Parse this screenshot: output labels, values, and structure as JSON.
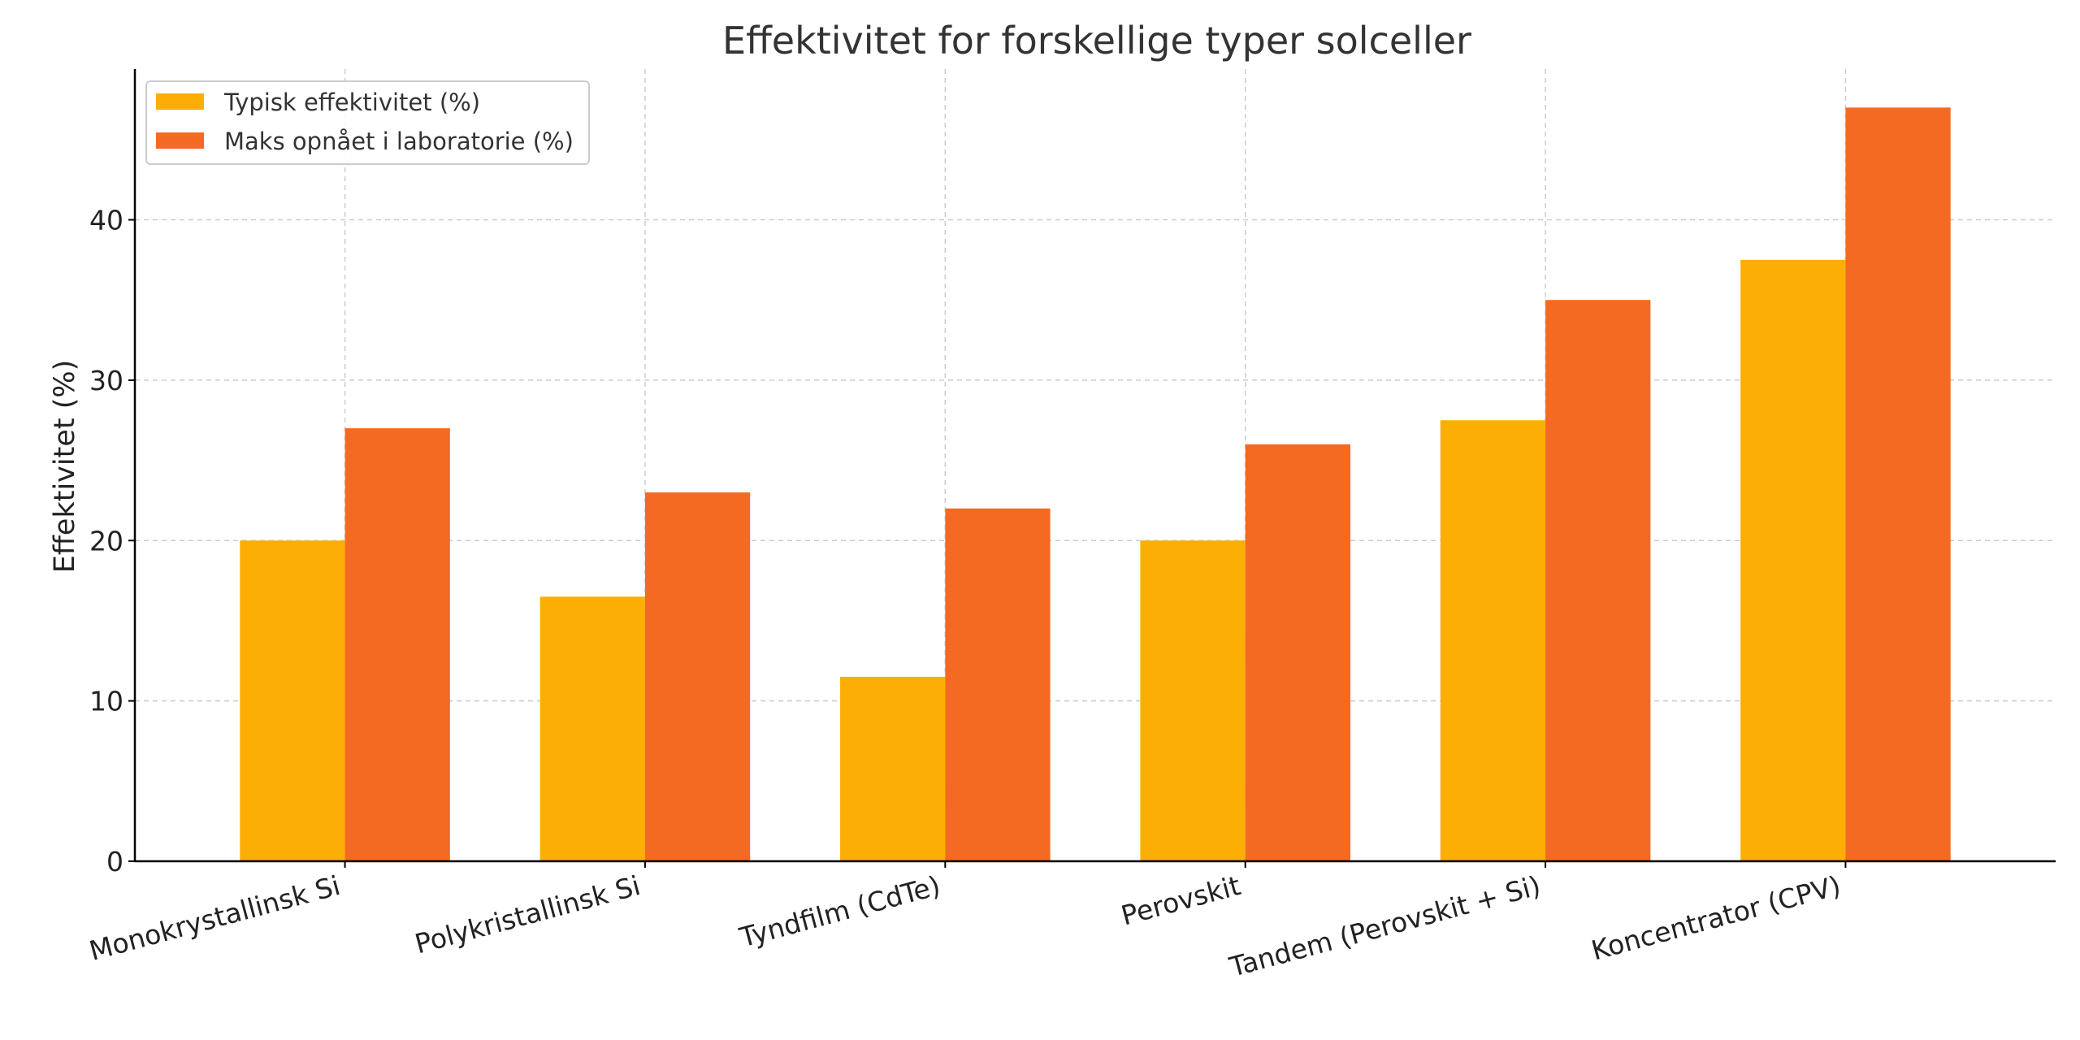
{
  "chart_data": {
    "type": "bar",
    "title": "Effektivitet for forskellige typer solceller",
    "xlabel": "",
    "ylabel": "Effektivitet (%)",
    "categories": [
      "Monokrystallinsk Si",
      "Polykristallinsk Si",
      "Tyndfilm (CdTe)",
      "Perovskit",
      "Tandem (Perovskit + Si)",
      "Koncentrator (CPV)"
    ],
    "series": [
      {
        "name": "Typisk effektivitet (%)",
        "color": "#fdae05",
        "values": [
          20,
          16.5,
          11.5,
          20,
          27.5,
          37.5
        ]
      },
      {
        "name": "Maks opnået i laboratorie (%)",
        "color": "#f46a22",
        "values": [
          27,
          23,
          22,
          26,
          35,
          47
        ]
      }
    ],
    "ylim": [
      0,
      49.4
    ],
    "yticks": [
      0,
      10,
      20,
      30,
      40
    ],
    "grid": true,
    "legend_position": "top-left",
    "x_tick_rotation": -15
  }
}
